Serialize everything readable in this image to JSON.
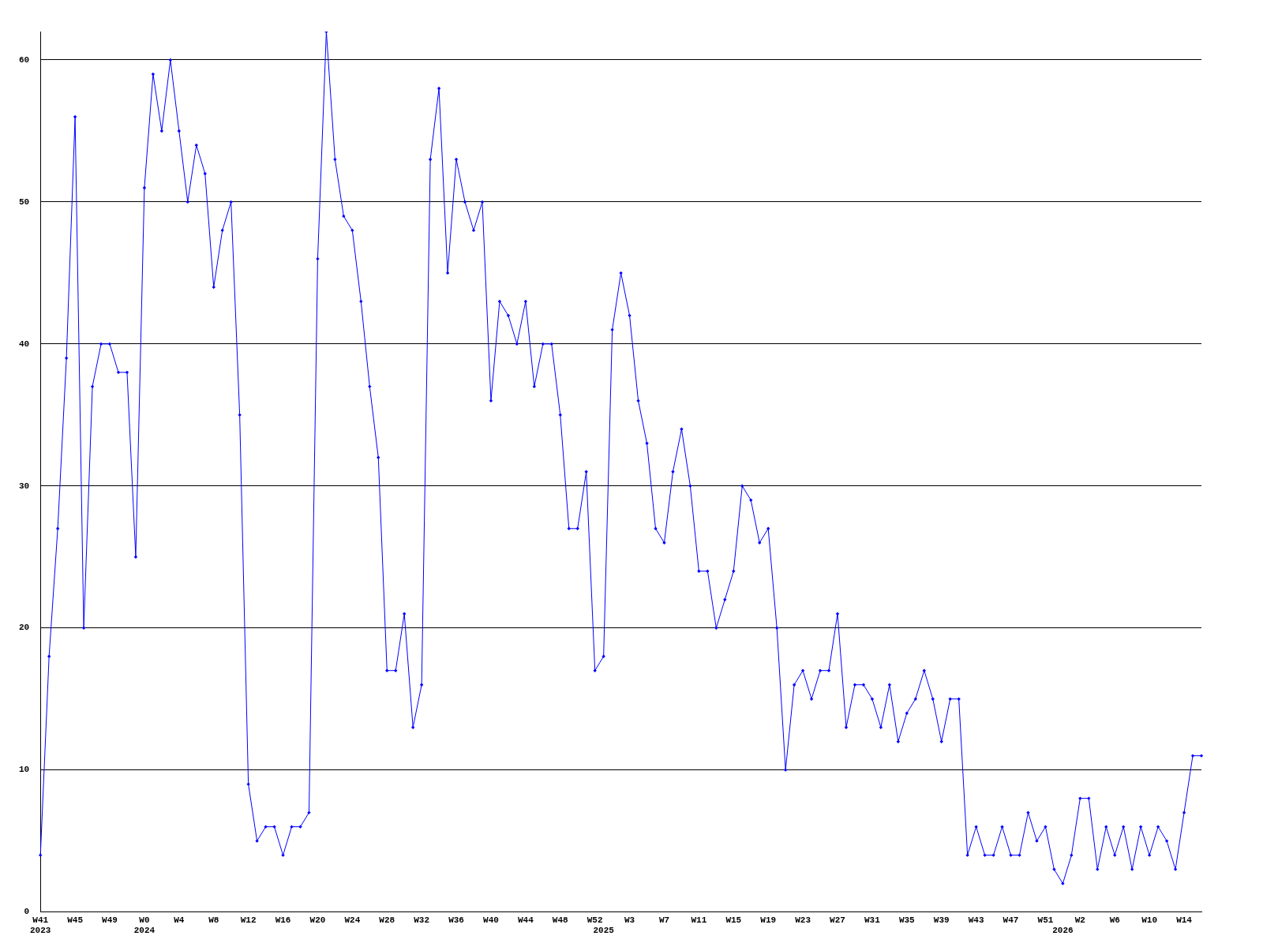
{
  "chart_data": {
    "type": "line",
    "categories": [
      "W41\n2023",
      null,
      null,
      null,
      "W45",
      null,
      null,
      null,
      "W49",
      null,
      null,
      null,
      "W0\n2024",
      null,
      null,
      null,
      "W4",
      null,
      null,
      null,
      "W8",
      null,
      null,
      null,
      "W12",
      null,
      null,
      null,
      "W16",
      null,
      null,
      null,
      "W20",
      null,
      null,
      null,
      "W24",
      null,
      null,
      null,
      "W28",
      null,
      null,
      null,
      "W32",
      null,
      null,
      null,
      "W36",
      null,
      null,
      null,
      "W40",
      null,
      null,
      null,
      "W44",
      null,
      null,
      null,
      "W48",
      null,
      null,
      null,
      "W52",
      "\n2025",
      null,
      null,
      "W3",
      null,
      null,
      null,
      "W7",
      null,
      null,
      null,
      "W11",
      null,
      null,
      null,
      "W15",
      null,
      null,
      null,
      "W19",
      null,
      null,
      null,
      "W23",
      null,
      null,
      null,
      "W27",
      null,
      null,
      null,
      "W31",
      null,
      null,
      null,
      "W35",
      null,
      null,
      null,
      "W39",
      null,
      null,
      null,
      "W43",
      null,
      null,
      null,
      "W47",
      null,
      null,
      null,
      "W51",
      null,
      "\n2026",
      null,
      "W2",
      null,
      null,
      null,
      "W6",
      null,
      null,
      null,
      "W10",
      null,
      null,
      null,
      "W14",
      null,
      null
    ],
    "values": [
      4,
      18,
      27,
      39,
      56,
      20,
      37,
      40,
      40,
      38,
      38,
      25,
      51,
      59,
      55,
      60,
      55,
      50,
      54,
      52,
      44,
      48,
      50,
      35,
      9,
      5,
      6,
      6,
      4,
      6,
      6,
      7,
      46,
      62,
      53,
      49,
      48,
      43,
      37,
      32,
      17,
      17,
      21,
      13,
      16,
      53,
      58,
      45,
      53,
      50,
      48,
      50,
      36,
      43,
      42,
      40,
      43,
      37,
      40,
      40,
      35,
      27,
      27,
      31,
      17,
      18,
      41,
      45,
      42,
      36,
      33,
      27,
      26,
      31,
      34,
      30,
      24,
      24,
      20,
      22,
      24,
      30,
      29,
      26,
      27,
      20,
      10,
      16,
      17,
      15,
      17,
      17,
      21,
      13,
      16,
      16,
      15,
      13,
      16,
      12,
      14,
      15,
      17,
      15,
      12,
      15,
      15,
      4,
      6,
      4,
      4,
      6,
      4,
      4,
      7,
      5,
      6,
      3,
      2,
      4,
      8,
      8,
      3,
      6,
      4,
      6,
      3,
      6,
      4,
      6,
      5,
      3,
      7,
      11,
      11
    ],
    "color": "#0000ff",
    "marker": "diamond",
    "line_style": "solid",
    "ylim": [
      0,
      62
    ],
    "yticks": [
      0,
      10,
      20,
      30,
      40,
      50,
      60
    ],
    "grid": "y"
  }
}
